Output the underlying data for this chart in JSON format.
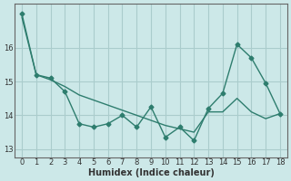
{
  "line1_x": [
    0,
    1,
    2,
    3,
    4,
    5,
    6,
    7,
    8,
    9,
    10,
    11,
    12,
    13,
    14,
    15,
    16,
    17,
    18
  ],
  "line1_y": [
    17.0,
    15.2,
    15.1,
    14.7,
    13.75,
    13.65,
    13.75,
    14.0,
    13.65,
    14.25,
    13.35,
    13.65,
    13.25,
    14.2,
    14.65,
    16.1,
    15.7,
    14.95,
    14.05
  ],
  "line2_x": [
    0,
    1,
    2,
    3,
    4,
    5,
    6,
    7,
    8,
    9,
    10,
    11,
    12,
    13,
    14,
    15,
    16,
    17,
    18
  ],
  "line2_y": [
    16.9,
    15.2,
    15.05,
    14.85,
    14.6,
    14.45,
    14.3,
    14.15,
    14.0,
    13.85,
    13.7,
    13.6,
    13.5,
    14.1,
    14.1,
    14.5,
    14.1,
    13.9,
    14.05
  ],
  "color": "#2e7d6e",
  "bg_color": "#cce8e8",
  "grid_color": "#aacccc",
  "xlabel": "Humidex (Indice chaleur)",
  "ylim": [
    12.75,
    17.3
  ],
  "xlim": [
    -0.5,
    18.5
  ],
  "yticks": [
    13,
    14,
    15,
    16
  ],
  "xticks": [
    0,
    1,
    2,
    3,
    4,
    5,
    6,
    7,
    8,
    9,
    10,
    11,
    12,
    13,
    14,
    15,
    16,
    17,
    18
  ]
}
